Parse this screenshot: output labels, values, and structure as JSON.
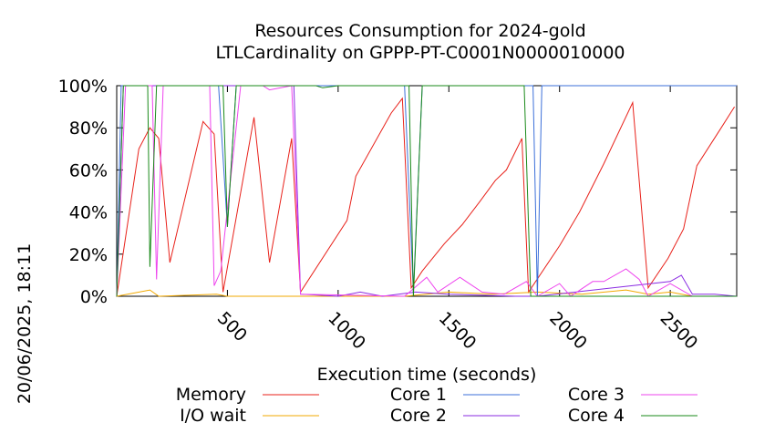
{
  "chart_data": {
    "type": "line",
    "title": "Resources Consumption for 2024-gold",
    "subtitle": "LTLCardinality on GPPP-PT-C0001N0000010000",
    "xlabel": "Execution time (seconds)",
    "ylabel": "",
    "side_label": "20/06/2025, 18:11",
    "xlim": [
      0,
      2800
    ],
    "ylim": [
      0,
      100
    ],
    "x_ticks": [
      500,
      1000,
      1500,
      2000,
      2500
    ],
    "y_ticks": [
      "0%",
      "20%",
      "40%",
      "60%",
      "80%",
      "100%"
    ],
    "grid": false,
    "legend_position": "bottom",
    "series": [
      {
        "name": "Memory",
        "color": "#e8211a",
        "points": [
          [
            0,
            0
          ],
          [
            100,
            70
          ],
          [
            150,
            80
          ],
          [
            190,
            75
          ],
          [
            240,
            16
          ],
          [
            390,
            83
          ],
          [
            440,
            77
          ],
          [
            480,
            2
          ],
          [
            620,
            85
          ],
          [
            690,
            16
          ],
          [
            790,
            75
          ],
          [
            830,
            2
          ],
          [
            1040,
            36
          ],
          [
            1080,
            57
          ],
          [
            1240,
            87
          ],
          [
            1290,
            94
          ],
          [
            1330,
            4
          ],
          [
            1380,
            12
          ],
          [
            1480,
            25
          ],
          [
            1560,
            34
          ],
          [
            1640,
            45
          ],
          [
            1710,
            55
          ],
          [
            1760,
            60
          ],
          [
            1830,
            75
          ],
          [
            1860,
            2
          ],
          [
            2000,
            24
          ],
          [
            2090,
            40
          ],
          [
            2200,
            63
          ],
          [
            2330,
            92
          ],
          [
            2400,
            4
          ],
          [
            2490,
            18
          ],
          [
            2560,
            32
          ],
          [
            2620,
            62
          ],
          [
            2730,
            80
          ],
          [
            2790,
            90
          ]
        ]
      },
      {
        "name": "I/O wait",
        "color": "#f2a900",
        "points": [
          [
            0,
            0
          ],
          [
            150,
            3
          ],
          [
            190,
            0
          ],
          [
            450,
            1
          ],
          [
            500,
            0
          ],
          [
            1300,
            0
          ],
          [
            1500,
            2
          ],
          [
            1700,
            1
          ],
          [
            1900,
            2
          ],
          [
            2100,
            1
          ],
          [
            2300,
            3
          ],
          [
            2400,
            1
          ],
          [
            2500,
            2
          ],
          [
            2600,
            0
          ],
          [
            2800,
            0
          ]
        ]
      },
      {
        "name": "Core 1",
        "color": "#3b6fd9",
        "points": [
          [
            0,
            0
          ],
          [
            20,
            100
          ],
          [
            460,
            100
          ],
          [
            500,
            33
          ],
          [
            540,
            100
          ],
          [
            1300,
            100
          ],
          [
            1340,
            2
          ],
          [
            1380,
            100
          ],
          [
            1880,
            100
          ],
          [
            1900,
            0
          ],
          [
            1920,
            100
          ],
          [
            2800,
            100
          ]
        ]
      },
      {
        "name": "Core 2",
        "color": "#8a2be2",
        "points": [
          [
            0,
            0
          ],
          [
            30,
            100
          ],
          [
            800,
            100
          ],
          [
            830,
            1
          ],
          [
            1000,
            0
          ],
          [
            1100,
            2
          ],
          [
            1200,
            0
          ],
          [
            1350,
            2
          ],
          [
            1500,
            1
          ],
          [
            1800,
            0
          ],
          [
            1900,
            0
          ],
          [
            2500,
            7
          ],
          [
            2550,
            10
          ],
          [
            2600,
            1
          ],
          [
            2700,
            1
          ],
          [
            2800,
            0
          ]
        ]
      },
      {
        "name": "Core 3",
        "color": "#ee44ee",
        "points": [
          [
            0,
            0
          ],
          [
            40,
            100
          ],
          [
            160,
            100
          ],
          [
            180,
            8
          ],
          [
            210,
            100
          ],
          [
            420,
            100
          ],
          [
            440,
            5
          ],
          [
            470,
            12
          ],
          [
            560,
            100
          ],
          [
            660,
            100
          ],
          [
            690,
            98
          ],
          [
            790,
            100
          ],
          [
            830,
            1
          ],
          [
            1300,
            0
          ],
          [
            1400,
            9
          ],
          [
            1450,
            2
          ],
          [
            1550,
            9
          ],
          [
            1650,
            2
          ],
          [
            1750,
            1
          ],
          [
            1850,
            7
          ],
          [
            1900,
            0
          ],
          [
            2000,
            6
          ],
          [
            2050,
            0
          ],
          [
            2150,
            7
          ],
          [
            2200,
            7
          ],
          [
            2300,
            13
          ],
          [
            2360,
            8
          ],
          [
            2400,
            0
          ],
          [
            2500,
            6
          ],
          [
            2600,
            0
          ],
          [
            2800,
            0
          ]
        ]
      },
      {
        "name": "Core 4",
        "color": "#1a8a1a",
        "points": [
          [
            0,
            0
          ],
          [
            30,
            100
          ],
          [
            140,
            100
          ],
          [
            150,
            14
          ],
          [
            180,
            100
          ],
          [
            480,
            100
          ],
          [
            500,
            33
          ],
          [
            540,
            100
          ],
          [
            900,
            100
          ],
          [
            930,
            99
          ],
          [
            1000,
            100
          ],
          [
            1320,
            100
          ],
          [
            1340,
            0
          ],
          [
            1380,
            100
          ],
          [
            1840,
            100
          ],
          [
            1870,
            0
          ],
          [
            1900,
            0
          ],
          [
            2800,
            0
          ]
        ]
      }
    ]
  }
}
